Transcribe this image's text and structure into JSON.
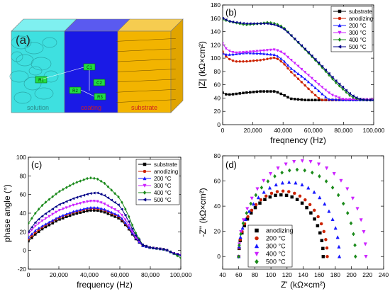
{
  "panel_a": {
    "label": "(a)",
    "layers": [
      {
        "name": "solution",
        "color": "#3ee0e0",
        "top": "#7ff0f0"
      },
      {
        "name": "coating",
        "color": "#1a1ae6",
        "top": "#5a5af0"
      },
      {
        "name": "substrate",
        "color": "#f2b400",
        "top": "#f6cc50"
      }
    ],
    "elements": [
      "R1",
      "C1",
      "R2",
      "C2",
      "R3"
    ]
  },
  "chart_data": [
    {
      "id": "b",
      "type": "line",
      "panel_label": "(b)",
      "xlabel": "freqnency (Hz)",
      "ylabel": "|Z| (kΩ×cm²)",
      "xlim": [
        0,
        100000
      ],
      "ylim": [
        0,
        180
      ],
      "xticks": [
        0,
        20000,
        40000,
        60000,
        80000,
        100000
      ],
      "xtick_labels": [
        "0",
        "20,000",
        "40,000",
        "60,000",
        "80,000",
        "100,000"
      ],
      "yticks": [
        0,
        20,
        40,
        60,
        80,
        100,
        120,
        140,
        160,
        180
      ],
      "legend": "top-right",
      "series": [
        {
          "name": "substrate",
          "color": "#000000",
          "marker": "square",
          "x": [
            0,
            3000,
            8000,
            15000,
            25000,
            35000,
            40000,
            45000,
            55000,
            70000,
            85000,
            100000
          ],
          "y": [
            48,
            45,
            46,
            48,
            50,
            50,
            45,
            39,
            37,
            37,
            37,
            37
          ]
        },
        {
          "name": "anodizing",
          "color": "#cc2200",
          "marker": "circle",
          "x": [
            0,
            3000,
            8000,
            15000,
            25000,
            35000,
            40000,
            45000,
            55000,
            60000,
            65000,
            70000,
            80000,
            100000
          ],
          "y": [
            110,
            100,
            95,
            95,
            97,
            101,
            93,
            80,
            58,
            47,
            37,
            37,
            37,
            37
          ]
        },
        {
          "name": "200 °C",
          "color": "#1818ff",
          "marker": "triangle-up",
          "x": [
            0,
            3000,
            8000,
            15000,
            25000,
            35000,
            40000,
            45000,
            55000,
            65000,
            70000,
            80000,
            100000
          ],
          "y": [
            107,
            105,
            106,
            108,
            107,
            105,
            97,
            85,
            68,
            48,
            38,
            37,
            37
          ]
        },
        {
          "name": "300 °C",
          "color": "#cc22ff",
          "marker": "triangle-down",
          "x": [
            0,
            3000,
            8000,
            15000,
            25000,
            35000,
            40000,
            45000,
            55000,
            65000,
            72000,
            80000,
            100000
          ],
          "y": [
            122,
            112,
            108,
            109,
            111,
            113,
            108,
            98,
            78,
            58,
            45,
            38,
            38
          ]
        },
        {
          "name": "400 °C",
          "color": "#1a8a1a",
          "marker": "diamond",
          "x": [
            0,
            5000,
            15000,
            25000,
            30000,
            35000,
            40000,
            45000,
            55000,
            65000,
            75000,
            85000,
            90000,
            95000,
            100000
          ],
          "y": [
            158,
            155,
            150,
            152,
            154,
            152,
            147,
            135,
            112,
            88,
            63,
            42,
            38,
            37,
            37
          ]
        },
        {
          "name": "500 °C",
          "color": "#000088",
          "marker": "triangle-left",
          "x": [
            0,
            5000,
            15000,
            25000,
            30000,
            35000,
            40000,
            45000,
            55000,
            65000,
            75000,
            85000,
            90000,
            95000,
            100000
          ],
          "y": [
            160,
            155,
            152,
            152,
            152,
            150,
            145,
            135,
            113,
            90,
            66,
            45,
            39,
            37,
            37
          ]
        }
      ]
    },
    {
      "id": "c",
      "type": "line",
      "panel_label": "(c)",
      "xlabel": "frequency (Hz)",
      "ylabel": "phase angle (°)",
      "xlim": [
        0,
        100000
      ],
      "ylim": [
        -20,
        100
      ],
      "xticks": [
        0,
        20000,
        40000,
        60000,
        80000,
        100000
      ],
      "xtick_labels": [
        "0",
        "20,000",
        "40,000",
        "60,000",
        "80,000",
        "100,000"
      ],
      "yticks": [
        -20,
        0,
        20,
        40,
        60,
        80,
        100
      ],
      "legend": "top-right",
      "series": [
        {
          "name": "substrate",
          "color": "#000000",
          "marker": "square",
          "x": [
            0,
            5000,
            10000,
            20000,
            30000,
            40000,
            45000,
            50000,
            60000,
            65000,
            70000,
            75000,
            80000,
            90000,
            95000,
            100000
          ],
          "y": [
            10,
            18,
            24,
            33,
            39,
            43,
            43,
            41,
            34,
            25,
            13,
            5,
            3,
            1,
            -3,
            -5
          ]
        },
        {
          "name": "anodizing",
          "color": "#cc2200",
          "marker": "circle",
          "x": [
            0,
            5000,
            10000,
            20000,
            30000,
            40000,
            45000,
            50000,
            60000,
            65000,
            70000,
            75000,
            80000,
            90000,
            95000,
            100000
          ],
          "y": [
            12,
            20,
            26,
            35,
            41,
            45,
            45,
            43,
            36,
            26,
            14,
            5,
            3,
            1,
            -3,
            -5
          ]
        },
        {
          "name": "200 °C",
          "color": "#1818ff",
          "marker": "triangle-up",
          "x": [
            0,
            5000,
            10000,
            20000,
            30000,
            40000,
            45000,
            50000,
            60000,
            65000,
            70000,
            75000,
            80000,
            90000,
            95000,
            100000
          ],
          "y": [
            14,
            22,
            27,
            36,
            42,
            46,
            46,
            44,
            37,
            27,
            14,
            5,
            3,
            1,
            -3,
            -5
          ]
        },
        {
          "name": "300 °C",
          "color": "#cc22ff",
          "marker": "triangle-down",
          "x": [
            0,
            5000,
            10000,
            20000,
            30000,
            40000,
            45000,
            50000,
            60000,
            65000,
            70000,
            75000,
            80000,
            90000,
            95000,
            100000
          ],
          "y": [
            18,
            27,
            33,
            43,
            49,
            53,
            53,
            50,
            41,
            30,
            15,
            6,
            3,
            1,
            -3,
            -5
          ]
        },
        {
          "name": "400 °C",
          "color": "#1a8a1a",
          "marker": "diamond",
          "x": [
            0,
            5000,
            10000,
            20000,
            30000,
            40000,
            45000,
            50000,
            60000,
            65000,
            70000,
            75000,
            80000,
            90000,
            95000,
            100000
          ],
          "y": [
            29,
            41,
            50,
            63,
            72,
            78,
            77,
            72,
            56,
            40,
            20,
            6,
            3,
            1,
            -3,
            -8
          ]
        },
        {
          "name": "500 °C",
          "color": "#000088",
          "marker": "triangle-left",
          "x": [
            0,
            5000,
            10000,
            20000,
            30000,
            40000,
            45000,
            50000,
            60000,
            65000,
            70000,
            75000,
            80000,
            90000,
            95000,
            100000
          ],
          "y": [
            20,
            31,
            38,
            49,
            56,
            61,
            62,
            59,
            48,
            34,
            17,
            6,
            3,
            1,
            -3,
            -5
          ]
        }
      ]
    },
    {
      "id": "d",
      "type": "scatter",
      "panel_label": "(d)",
      "xlabel": "Z' (kΩ×cm²)",
      "ylabel": "-Z'' (kΩ×cm²)",
      "xlim": [
        40,
        240
      ],
      "ylim": [
        -10,
        80
      ],
      "xticks": [
        40,
        60,
        80,
        100,
        120,
        140,
        160,
        180,
        200,
        220,
        240
      ],
      "yticks": [
        0,
        20,
        40,
        60,
        80
      ],
      "legend": "bottom-center",
      "series": [
        {
          "name": "anodizing",
          "color": "#000000",
          "marker": "square",
          "z0": 60,
          "z1": 165,
          "peak": 49
        },
        {
          "name": "200 °C",
          "color": "#cc2200",
          "marker": "circle",
          "z0": 60,
          "z1": 170,
          "peak": 52
        },
        {
          "name": "300 °C",
          "color": "#1818ff",
          "marker": "triangle-up",
          "z0": 60,
          "z1": 185,
          "peak": 59
        },
        {
          "name": "400 °C",
          "color": "#cc22ff",
          "marker": "triangle-down",
          "z0": 60,
          "z1": 218,
          "peak": 76
        },
        {
          "name": "500 °C",
          "color": "#1a8a1a",
          "marker": "diamond",
          "z0": 60,
          "z1": 205,
          "peak": 69
        }
      ]
    }
  ]
}
